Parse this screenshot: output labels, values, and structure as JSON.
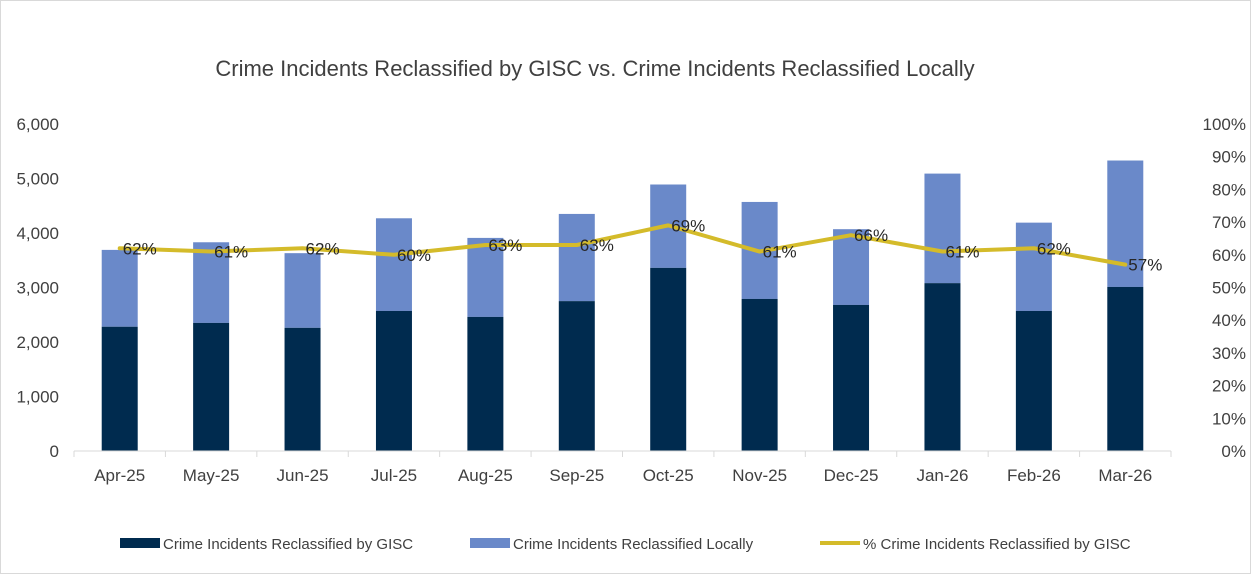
{
  "chart_data": {
    "type": "bar",
    "title": "Crime Incidents Reclassified by GISC vs. Crime Incidents Reclassified Locally",
    "categories": [
      "Apr-25",
      "May-25",
      "Jun-25",
      "Jul-25",
      "Aug-25",
      "Sep-25",
      "Oct-25",
      "Nov-25",
      "Dec-25",
      "Jan-26",
      "Feb-26",
      "Mar-26"
    ],
    "stacked": true,
    "series": [
      {
        "name": "Crime Incidents Reclassified by GISC",
        "axis": "left",
        "color": "#002b4f",
        "values": [
          2280,
          2350,
          2260,
          2570,
          2460,
          2750,
          3360,
          2790,
          2680,
          3080,
          2570,
          3010
        ]
      },
      {
        "name": "Crime Incidents Reclassified Locally",
        "axis": "left",
        "color": "#6a89c9",
        "values": [
          1410,
          1480,
          1370,
          1700,
          1450,
          1600,
          1530,
          1780,
          1390,
          2010,
          1620,
          2320
        ]
      },
      {
        "name": "% Crime Incidents Reclassified by GISC",
        "type": "line",
        "axis": "right",
        "color": "#d4bb2a",
        "values": [
          62,
          61,
          62,
          60,
          63,
          63,
          69,
          61,
          66,
          61,
          62,
          57
        ],
        "labels": [
          "62%",
          "61%",
          "62%",
          "60%",
          "63%",
          "63%",
          "69%",
          "61%",
          "66%",
          "61%",
          "62%",
          "57%"
        ]
      }
    ],
    "y_left": {
      "ylim": [
        0,
        6000
      ],
      "ticks": [
        0,
        1000,
        2000,
        3000,
        4000,
        5000,
        6000
      ],
      "tick_labels": [
        "0",
        "1,000",
        "2,000",
        "3,000",
        "4,000",
        "5,000",
        "6,000"
      ]
    },
    "y_right": {
      "ylim": [
        0,
        100
      ],
      "ticks": [
        0,
        10,
        20,
        30,
        40,
        50,
        60,
        70,
        80,
        90,
        100
      ],
      "tick_labels": [
        "0%",
        "10%",
        "20%",
        "30%",
        "40%",
        "50%",
        "60%",
        "70%",
        "80%",
        "90%",
        "100%"
      ]
    },
    "grid": false,
    "legend_position": "bottom"
  }
}
